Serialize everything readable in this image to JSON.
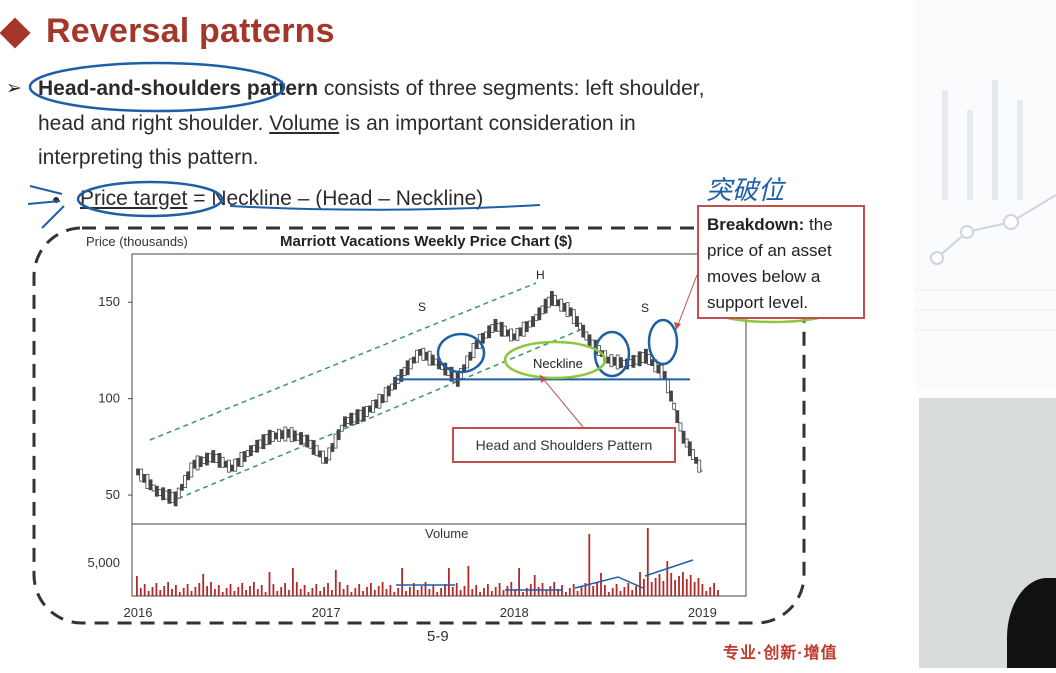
{
  "slide": {
    "title": "Reversal patterns",
    "bullet_marker": "➢",
    "para": {
      "term": "Head-and-shoulders pattern",
      "line1_rest": " consists of three segments: left shoulder,",
      "line2_pre": "head and right shoulder. ",
      "volume": "Volume",
      "line2_post": " is an important consideration in",
      "line3": "interpreting this pattern."
    },
    "price_target": {
      "bullet": "●",
      "label": "Price target",
      "formula": " = Neckline – (Head – Neckline)"
    },
    "handwritten_note": "突破位",
    "page_number": "5-9",
    "slogan": "专业·创新·增值"
  },
  "chart": {
    "title": "Marriott Vacations Weekly Price Chart ($)",
    "y_axis_label": "Price (thousands)",
    "volume_label": "Volume",
    "neckline_label": "Neckline",
    "shoulder_labels": [
      "S",
      "H",
      "S"
    ],
    "pattern_label": "Head and Shoulders Pattern",
    "breakdown": {
      "term": "Breakdown:",
      "line1_rest": " the",
      "line2": "price of an asset",
      "line3": "moves below a",
      "line4": "support level."
    },
    "colors": {
      "candles": "#555555",
      "channel": "#3a9a5a",
      "neckline": "#1f5fa8",
      "volume": "#b22a2a",
      "annotation": "#1f5fa8",
      "highlight": "#8dc63f"
    }
  },
  "chart_data": {
    "type": "line",
    "title": "Marriott Vacations Weekly Price Chart ($)",
    "ylabel": "Price (thousands)",
    "x_ticks": [
      "2016",
      "2017",
      "2018",
      "2019"
    ],
    "y_ticks": [
      50,
      100,
      150
    ],
    "volume_ticks": [
      "5,000"
    ],
    "ylim": [
      35,
      175
    ],
    "series": [
      {
        "x": [
          2016.0,
          2016.1,
          2016.2,
          2016.3,
          2016.4,
          2016.5,
          2016.6,
          2016.7,
          2016.8,
          2016.9,
          2017.0,
          2017.1,
          2017.2,
          2017.3,
          2017.4,
          2017.5,
          2017.6,
          2017.7,
          2017.8,
          2017.9,
          2018.0,
          2018.1,
          2018.2,
          2018.3,
          2018.4,
          2018.5,
          2018.6,
          2018.7,
          2018.8,
          2018.9,
          2019.0
        ],
        "values": [
          62,
          52,
          48,
          66,
          70,
          64,
          73,
          80,
          82,
          78,
          68,
          88,
          92,
          100,
          112,
          124,
          118,
          110,
          128,
          138,
          132,
          140,
          152,
          145,
          130,
          120,
          118,
          122,
          112,
          80,
          62
        ]
      }
    ],
    "neckline": 110
  }
}
